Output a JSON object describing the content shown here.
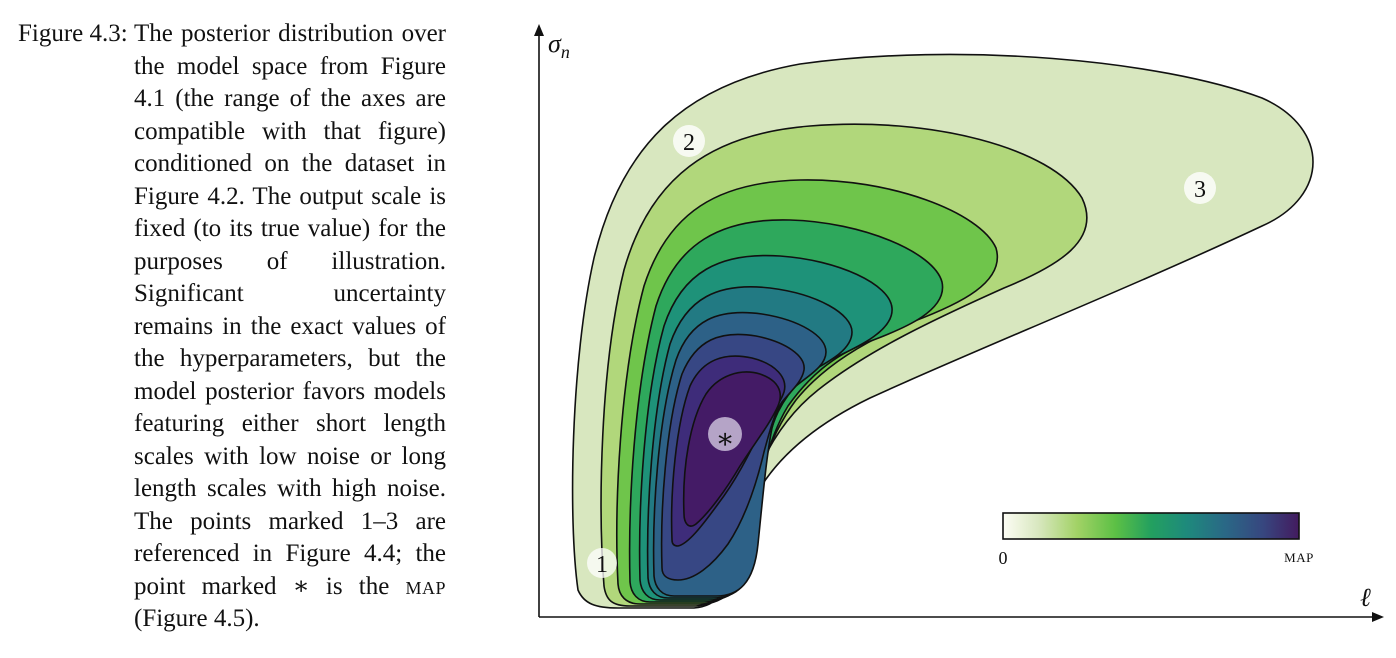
{
  "caption": {
    "label": "Figure 4.3:",
    "text_before_sc": "The posterior distribution over the model space from Figure 4.1 (the range of the axes are compatible with that figure) conditioned on the dataset in Figure 4.2. The out­put scale is fixed (to its true value) for the purposes of il­lustration. Significant uncer­tainty remains in the exact values of the hyperparame­ters, but the model posterior favors models featuring either short length scales with low noise or long length scales with high noise. The points marked 1–3 are referenced in Figure 4.4; the point marked ∗ is the ",
    "sc_text": "map",
    "text_after_sc": " (Figure 4.5)."
  },
  "plot": {
    "y_axis_label": "σn",
    "y_axis_label_main": "σ",
    "y_axis_label_sub": "n",
    "x_axis_label": "ℓ",
    "points": [
      {
        "label": "1"
      },
      {
        "label": "2"
      },
      {
        "label": "3"
      },
      {
        "label": "∗"
      }
    ],
    "colorbar": {
      "min_label": "0",
      "max_label": "map"
    },
    "colors": {
      "c0": "#fafbf0",
      "c1": "#d8e7bf",
      "c2": "#b0d67a",
      "c3": "#6cc44a",
      "c4": "#2ea85b",
      "c5": "#1f9279",
      "c6": "#217a83",
      "c7": "#2d6186",
      "c8": "#364683",
      "c9": "#3f2b79",
      "c10": "#431b65"
    }
  }
}
